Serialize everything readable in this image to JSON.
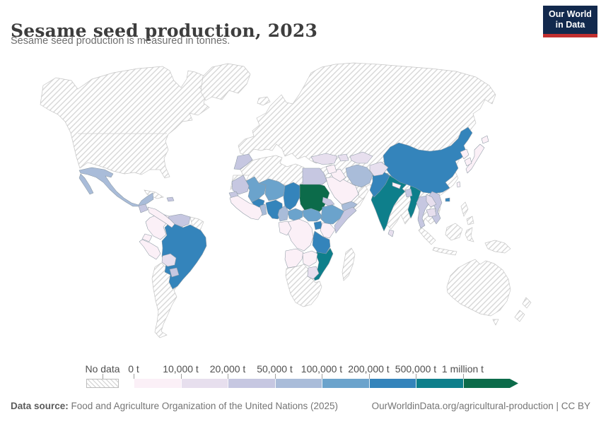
{
  "header": {
    "title": "Sesame seed production, 2023",
    "subtitle": "Sesame seed production is measured in tonnes.",
    "logo_line1": "Our World",
    "logo_line2": "in Data",
    "logo_bg": "#12294d",
    "logo_accent": "#c22f2f"
  },
  "legend": {
    "no_data_label": "No data",
    "hatch_color": "#d9d9d9"
  },
  "footer": {
    "source_label": "Data source:",
    "source_text": " Food and Agriculture Organization of the United Nations (2025)",
    "right_text": "OurWorldinData.org/agricultural-production | CC BY"
  },
  "chart_data": {
    "type": "heatmap",
    "variant": "choropleth-world-map",
    "title": "Sesame seed production, 2023",
    "unit": "tonnes",
    "bin_edge_labels": [
      "0 t",
      "10,000 t",
      "20,000 t",
      "50,000 t",
      "100,000 t",
      "200,000 t",
      "500,000 t",
      "1 million t"
    ],
    "bin_colors": [
      "#fbf0f7",
      "#e7dfee",
      "#c6c7e1",
      "#a9bcd9",
      "#6ba3cc",
      "#3484bb",
      "#0e7f8b",
      "#0c6b4a"
    ],
    "no_data_fill": "diagonal-hatch",
    "countries": [
      {
        "name": "Sudan",
        "bin": 8
      },
      {
        "name": "India",
        "bin": 7
      },
      {
        "name": "Myanmar",
        "bin": 7
      },
      {
        "name": "Mozambique",
        "bin": 7
      },
      {
        "name": "China",
        "bin": 6
      },
      {
        "name": "Pakistan",
        "bin": 6
      },
      {
        "name": "Brazil",
        "bin": 6
      },
      {
        "name": "Chad",
        "bin": 6
      },
      {
        "name": "Burkina Faso",
        "bin": 6
      },
      {
        "name": "Nigeria",
        "bin": 6
      },
      {
        "name": "Tanzania",
        "bin": 6
      },
      {
        "name": "Uganda",
        "bin": 6
      },
      {
        "name": "Mali",
        "bin": 5
      },
      {
        "name": "Niger",
        "bin": 5
      },
      {
        "name": "Ethiopia",
        "bin": 5
      },
      {
        "name": "South Sudan",
        "bin": 5
      },
      {
        "name": "Central African Republic",
        "bin": 5
      },
      {
        "name": "Mexico",
        "bin": 4
      },
      {
        "name": "Iran",
        "bin": 4
      },
      {
        "name": "Yemen",
        "bin": 4
      },
      {
        "name": "Cameroon",
        "bin": 4
      },
      {
        "name": "Benin",
        "bin": 4
      },
      {
        "name": "Egypt",
        "bin": 3
      },
      {
        "name": "Morocco",
        "bin": 3
      },
      {
        "name": "Mauritania",
        "bin": 3
      },
      {
        "name": "Senegal",
        "bin": 3
      },
      {
        "name": "Venezuela",
        "bin": 3
      },
      {
        "name": "Paraguay",
        "bin": 3
      },
      {
        "name": "Guatemala",
        "bin": 3
      },
      {
        "name": "Thailand",
        "bin": 3
      },
      {
        "name": "Vietnam",
        "bin": 3
      },
      {
        "name": "Bangladesh",
        "bin": 3
      },
      {
        "name": "Haiti",
        "bin": 3
      },
      {
        "name": "Eritrea",
        "bin": 3
      },
      {
        "name": "Somalia",
        "bin": 3
      },
      {
        "name": "Turkey",
        "bin": 2
      },
      {
        "name": "Afghanistan",
        "bin": 2
      },
      {
        "name": "Uzbekistan",
        "bin": 2
      },
      {
        "name": "Azerbaijan",
        "bin": 2
      },
      {
        "name": "Bolivia",
        "bin": 2
      },
      {
        "name": "Zimbabwe",
        "bin": 2
      },
      {
        "name": "Laos",
        "bin": 2
      },
      {
        "name": "Cambodia",
        "bin": 2
      },
      {
        "name": "Sri Lanka",
        "bin": 2
      },
      {
        "name": "Colombia",
        "bin": 1
      },
      {
        "name": "Ecuador",
        "bin": 1
      },
      {
        "name": "Peru",
        "bin": 1
      },
      {
        "name": "Kenya",
        "bin": 1
      },
      {
        "name": "DR Congo",
        "bin": 1
      },
      {
        "name": "Congo",
        "bin": 1
      },
      {
        "name": "Angola",
        "bin": 1
      },
      {
        "name": "Zambia",
        "bin": 1
      },
      {
        "name": "West Africa Coastal",
        "bin": 1
      },
      {
        "name": "Saudi Arabia",
        "bin": 1
      },
      {
        "name": "Iraq",
        "bin": 1
      },
      {
        "name": "Syria",
        "bin": 1
      },
      {
        "name": "Japan",
        "bin": 1
      },
      {
        "name": "South Korea",
        "bin": 1
      },
      {
        "name": "North Korea",
        "bin": 1
      },
      {
        "name": "Nepal",
        "bin": 1
      },
      {
        "name": "Taiwan",
        "bin": 1
      },
      {
        "name": "Central America",
        "bin": 1
      }
    ],
    "no_data_regions": [
      "North America",
      "Greenland",
      "Iceland",
      "Eurasia",
      "Argentina Chile",
      "Guyanas",
      "Cuba",
      "North Africa",
      "Western Sahara",
      "Southern Africa",
      "Madagascar",
      "Oman",
      "Indonesia Sumatra",
      "Indonesia Java",
      "Borneo",
      "Sulawesi",
      "Philippines",
      "New Guinea",
      "Australia",
      "Tasmania",
      "New Zealand"
    ]
  }
}
